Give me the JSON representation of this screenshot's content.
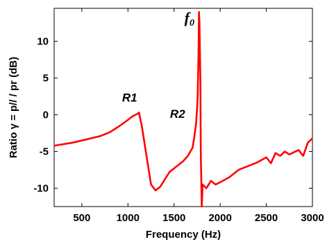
{
  "chart_data": {
    "type": "line",
    "xlabel": "Frequency (Hz)",
    "ylabel": "Ratio γ = p// / pr  (dB)",
    "xlim": [
      200,
      3000
    ],
    "ylim": [
      -12.5,
      14.5
    ],
    "xticks": [
      500,
      1000,
      1500,
      2000,
      2500,
      3000
    ],
    "yticks": [
      -10,
      -5,
      0,
      5,
      10
    ],
    "grid": false,
    "series_color": "#ff0000",
    "annotations": [
      {
        "text": "R1",
        "x": 1100,
        "y": 1.8
      },
      {
        "text": "R2",
        "x": 1620,
        "y": -0.4
      },
      {
        "text": "f0",
        "x": 1720,
        "y": 12.5
      }
    ],
    "series": [
      {
        "x": [
          200,
          300,
          400,
          500,
          600,
          700,
          800,
          900,
          1000,
          1050,
          1100,
          1120,
          1150,
          1200,
          1250,
          1300,
          1350,
          1400,
          1450,
          1500,
          1550,
          1600,
          1650,
          1700,
          1720,
          1740,
          1755,
          1765,
          1770,
          1775,
          1780,
          1785,
          1790,
          1800,
          1810,
          1850,
          1900,
          1950,
          2000,
          2100,
          2200,
          2300,
          2400,
          2500,
          2550,
          2600,
          2650,
          2700,
          2750,
          2800,
          2850,
          2900,
          2950,
          3000
        ],
        "y": [
          -4.2,
          -4.0,
          -3.8,
          -3.5,
          -3.2,
          -2.9,
          -2.4,
          -1.6,
          -0.7,
          -0.2,
          0.1,
          0.3,
          -1.5,
          -5.5,
          -9.5,
          -10.3,
          -9.8,
          -8.8,
          -7.8,
          -7.3,
          -6.8,
          -6.3,
          -5.6,
          -4.5,
          -3.0,
          -1.0,
          2.0,
          8.0,
          14.0,
          12.5,
          9.0,
          5.0,
          -5.0,
          -12.5,
          -9.5,
          -10.0,
          -9.0,
          -9.5,
          -9.2,
          -8.5,
          -7.5,
          -7.0,
          -6.5,
          -5.8,
          -6.6,
          -5.2,
          -5.6,
          -5.0,
          -5.4,
          -5.1,
          -4.8,
          -5.6,
          -3.8,
          -3.2
        ]
      }
    ]
  }
}
